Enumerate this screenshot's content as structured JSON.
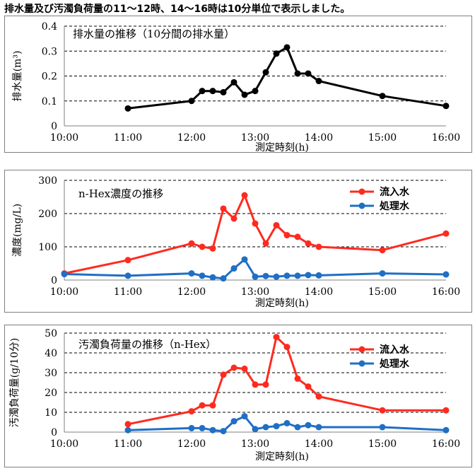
{
  "header": {
    "note": "排水量及び汚濁負荷量の11～12時、14～16時は10分単位で表示しました。"
  },
  "x_tick_labels": [
    "10:00",
    "11:00",
    "12:00",
    "13:00",
    "14:00",
    "15:00",
    "16:00"
  ],
  "chart_data": [
    {
      "type": "line",
      "title": "排水量の推移（10分間の排水量）",
      "xlabel": "測定時刻(h)",
      "ylabel": "排水量(m³)",
      "xlim": [
        "10:00",
        "16:00"
      ],
      "ylim": [
        0,
        0.4
      ],
      "yticks": [
        0,
        0.1,
        0.2,
        0.3,
        0.4
      ],
      "ytick_labels": [
        "0",
        "0.1",
        "0.2",
        "0.3",
        "0.4"
      ],
      "grid": "horizontal-dashed",
      "series": [
        {
          "color": "#000000",
          "points": [
            {
              "x": "11:00",
              "y": 0.07
            },
            {
              "x": "12:00",
              "y": 0.1
            },
            {
              "x": "12:10",
              "y": 0.14
            },
            {
              "x": "12:20",
              "y": 0.14
            },
            {
              "x": "12:30",
              "y": 0.135
            },
            {
              "x": "12:40",
              "y": 0.175
            },
            {
              "x": "12:50",
              "y": 0.125
            },
            {
              "x": "13:00",
              "y": 0.14
            },
            {
              "x": "13:10",
              "y": 0.215
            },
            {
              "x": "13:20",
              "y": 0.29
            },
            {
              "x": "13:30",
              "y": 0.315
            },
            {
              "x": "13:40",
              "y": 0.21
            },
            {
              "x": "13:50",
              "y": 0.21
            },
            {
              "x": "14:00",
              "y": 0.18
            },
            {
              "x": "15:00",
              "y": 0.12
            },
            {
              "x": "16:00",
              "y": 0.08
            }
          ]
        }
      ]
    },
    {
      "type": "line",
      "title": "n-Hex濃度の推移",
      "xlabel": "測定時刻(h)",
      "ylabel": "濃度(mg/L)",
      "xlim": [
        "10:00",
        "16:00"
      ],
      "ylim": [
        0,
        300
      ],
      "yticks": [
        0,
        100,
        200,
        300
      ],
      "ytick_labels": [
        "0",
        "100",
        "200",
        "300"
      ],
      "grid": "horizontal-dashed",
      "legend": "top-right",
      "series": [
        {
          "name": "流入水",
          "color": "#ff2a1f",
          "points": [
            {
              "x": "10:00",
              "y": 20
            },
            {
              "x": "11:00",
              "y": 60
            },
            {
              "x": "12:00",
              "y": 110
            },
            {
              "x": "12:10",
              "y": 100
            },
            {
              "x": "12:20",
              "y": 95
            },
            {
              "x": "12:30",
              "y": 215
            },
            {
              "x": "12:40",
              "y": 185
            },
            {
              "x": "12:50",
              "y": 255
            },
            {
              "x": "13:00",
              "y": 170
            },
            {
              "x": "13:10",
              "y": 110
            },
            {
              "x": "13:20",
              "y": 165
            },
            {
              "x": "13:30",
              "y": 135
            },
            {
              "x": "13:40",
              "y": 130
            },
            {
              "x": "13:50",
              "y": 110
            },
            {
              "x": "14:00",
              "y": 100
            },
            {
              "x": "15:00",
              "y": 90
            },
            {
              "x": "16:00",
              "y": 140
            }
          ]
        },
        {
          "name": "処理水",
          "color": "#1f6fc4",
          "points": [
            {
              "x": "10:00",
              "y": 18
            },
            {
              "x": "11:00",
              "y": 13
            },
            {
              "x": "12:00",
              "y": 20
            },
            {
              "x": "12:10",
              "y": 13
            },
            {
              "x": "12:20",
              "y": 8
            },
            {
              "x": "12:30",
              "y": 5
            },
            {
              "x": "12:40",
              "y": 35
            },
            {
              "x": "12:50",
              "y": 62
            },
            {
              "x": "13:00",
              "y": 10
            },
            {
              "x": "13:10",
              "y": 12
            },
            {
              "x": "13:20",
              "y": 10
            },
            {
              "x": "13:30",
              "y": 13
            },
            {
              "x": "13:40",
              "y": 13
            },
            {
              "x": "13:50",
              "y": 15
            },
            {
              "x": "14:00",
              "y": 14
            },
            {
              "x": "15:00",
              "y": 20
            },
            {
              "x": "16:00",
              "y": 17
            }
          ]
        }
      ]
    },
    {
      "type": "line",
      "title": "汚濁負荷量の推移（n-Hex）",
      "xlabel": "測定時刻(h)",
      "ylabel": "汚濁負荷量(g/10分)",
      "xlim": [
        "10:00",
        "16:00"
      ],
      "ylim": [
        0,
        50
      ],
      "yticks": [
        0,
        10,
        20,
        30,
        40,
        50
      ],
      "ytick_labels": [
        "0",
        "10",
        "20",
        "30",
        "40",
        "50"
      ],
      "grid": "horizontal-dashed",
      "legend": "top-right",
      "series": [
        {
          "name": "流入水",
          "color": "#ff2a1f",
          "points": [
            {
              "x": "11:00",
              "y": 4
            },
            {
              "x": "12:00",
              "y": 10.5
            },
            {
              "x": "12:10",
              "y": 13.5
            },
            {
              "x": "12:20",
              "y": 13.5
            },
            {
              "x": "12:30",
              "y": 29
            },
            {
              "x": "12:40",
              "y": 32.5
            },
            {
              "x": "12:50",
              "y": 32
            },
            {
              "x": "13:00",
              "y": 24
            },
            {
              "x": "13:10",
              "y": 24
            },
            {
              "x": "13:20",
              "y": 48
            },
            {
              "x": "13:30",
              "y": 43
            },
            {
              "x": "13:40",
              "y": 27
            },
            {
              "x": "13:50",
              "y": 23
            },
            {
              "x": "14:00",
              "y": 18
            },
            {
              "x": "15:00",
              "y": 11
            },
            {
              "x": "16:00",
              "y": 11
            }
          ]
        },
        {
          "name": "処理水",
          "color": "#1f6fc4",
          "points": [
            {
              "x": "11:00",
              "y": 1
            },
            {
              "x": "12:00",
              "y": 2
            },
            {
              "x": "12:10",
              "y": 2
            },
            {
              "x": "12:20",
              "y": 1
            },
            {
              "x": "12:30",
              "y": 0.5
            },
            {
              "x": "12:40",
              "y": 5.5
            },
            {
              "x": "12:50",
              "y": 8
            },
            {
              "x": "13:00",
              "y": 1.5
            },
            {
              "x": "13:10",
              "y": 2.5
            },
            {
              "x": "13:20",
              "y": 3
            },
            {
              "x": "13:30",
              "y": 4.5
            },
            {
              "x": "13:40",
              "y": 2.5
            },
            {
              "x": "13:50",
              "y": 3.5
            },
            {
              "x": "14:00",
              "y": 2.5
            },
            {
              "x": "15:00",
              "y": 2.5
            },
            {
              "x": "16:00",
              "y": 1
            }
          ]
        }
      ]
    }
  ]
}
